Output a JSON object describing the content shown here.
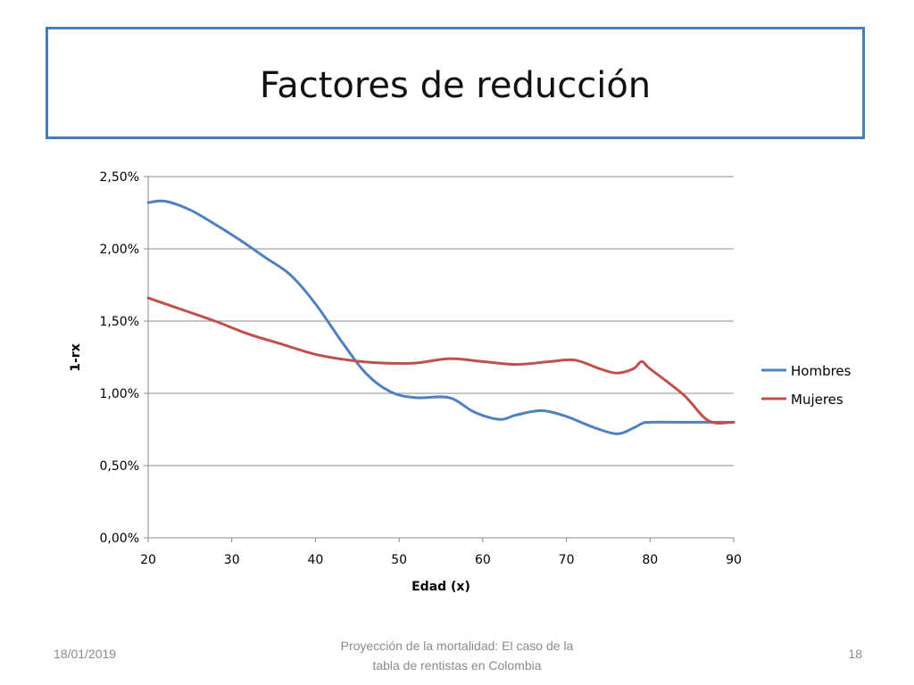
{
  "slide": {
    "title": "Factores de reducción",
    "footer_date": "18/01/2019",
    "footer_center_line1": "Proyección de la mortalidad: El caso de la",
    "footer_center_line2": "tabla de rentistas en Colombia",
    "footer_page": "18"
  },
  "chart_data": {
    "type": "line",
    "title": "",
    "xlabel": "Edad (x)",
    "ylabel": "1-rx",
    "xlim": [
      20,
      90
    ],
    "ylim": [
      0,
      2.5
    ],
    "x_ticks": [
      20,
      30,
      40,
      50,
      60,
      70,
      80,
      90
    ],
    "x_tick_labels": [
      "20",
      "30",
      "40",
      "50",
      "60",
      "70",
      "80",
      "90"
    ],
    "y_ticks": [
      0,
      0.5,
      1.0,
      1.5,
      2.0,
      2.5
    ],
    "y_tick_labels": [
      "0,00%",
      "0,50%",
      "1,00%",
      "1,50%",
      "2,00%",
      "2,50%"
    ],
    "y_unit": "%",
    "grid": "horizontal",
    "legend_position": "right",
    "series": [
      {
        "name": "Hombres",
        "color": "#4f81bd",
        "x": [
          20,
          22,
          25,
          28,
          31,
          34,
          37,
          40,
          43,
          46,
          49,
          52,
          56,
          59,
          62,
          64,
          67,
          70,
          73,
          76,
          78,
          79,
          80,
          85,
          90
        ],
        "values": [
          2.32,
          2.33,
          2.27,
          2.17,
          2.06,
          1.94,
          1.82,
          1.62,
          1.37,
          1.14,
          1.01,
          0.97,
          0.97,
          0.87,
          0.82,
          0.85,
          0.88,
          0.84,
          0.77,
          0.72,
          0.76,
          0.79,
          0.8,
          0.8,
          0.8
        ]
      },
      {
        "name": "Mujeres",
        "color": "#c0504d",
        "x": [
          20,
          24,
          28,
          32,
          36,
          40,
          44,
          48,
          52,
          56,
          60,
          64,
          68,
          71,
          74,
          76,
          78,
          79,
          80,
          84,
          87,
          90
        ],
        "values": [
          1.66,
          1.58,
          1.5,
          1.41,
          1.34,
          1.27,
          1.23,
          1.21,
          1.21,
          1.24,
          1.22,
          1.2,
          1.22,
          1.23,
          1.17,
          1.14,
          1.17,
          1.22,
          1.17,
          0.99,
          0.81,
          0.8
        ]
      }
    ]
  }
}
